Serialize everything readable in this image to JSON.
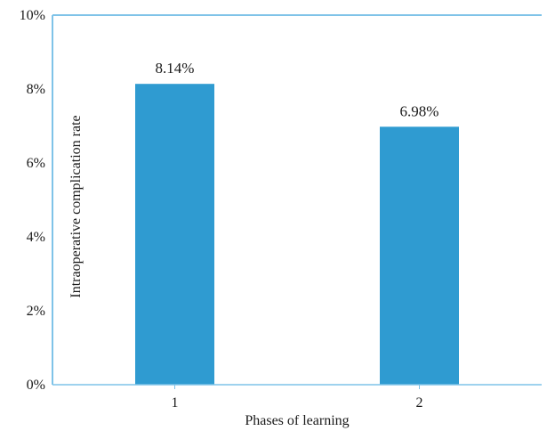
{
  "chart_data": {
    "type": "bar",
    "categories": [
      "1",
      "2"
    ],
    "values": [
      8.14,
      6.98
    ],
    "data_labels": [
      "8.14%",
      "6.98%"
    ],
    "xlabel": "Phases of learning",
    "ylabel": "Intraoperative complication rate",
    "ylim": [
      0,
      10
    ],
    "yticks": [
      0,
      2,
      4,
      6,
      8,
      10
    ],
    "ytick_labels": [
      "0%",
      "2%",
      "4%",
      "6%",
      "8%",
      "10%"
    ],
    "grid": false,
    "legend": "none",
    "colors": {
      "bar": "#2f9bd1",
      "axis": "#7fc3e8"
    }
  }
}
